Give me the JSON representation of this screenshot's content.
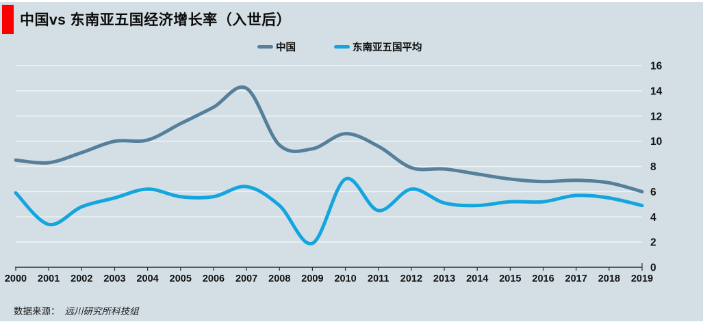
{
  "header": {
    "title": "中国vs 东南亚五国经济增长率（入世后）",
    "accent_color": "#fb0000"
  },
  "legend": {
    "items": [
      {
        "label": "中国",
        "color": "#557f9a"
      },
      {
        "label": "东南亚五国平均",
        "color": "#14a5de"
      }
    ]
  },
  "chart_data": {
    "type": "line",
    "title": "中国vs 东南亚五国经济增长率（入世后）",
    "x": [
      "2000",
      "2001",
      "2002",
      "2003",
      "2004",
      "2005",
      "2006",
      "2007",
      "2008",
      "2009",
      "2010",
      "2011",
      "2012",
      "2013",
      "2014",
      "2015",
      "2016",
      "2017",
      "2018",
      "2019"
    ],
    "series": [
      {
        "name": "中国",
        "color": "#557f9a",
        "values": [
          8.5,
          8.3,
          9.1,
          10.0,
          10.1,
          11.4,
          12.7,
          14.2,
          9.7,
          9.4,
          10.6,
          9.6,
          7.9,
          7.8,
          7.4,
          7.0,
          6.8,
          6.9,
          6.7,
          6.0
        ]
      },
      {
        "name": "东南亚五国平均",
        "color": "#14a5de",
        "values": [
          5.9,
          3.4,
          4.8,
          5.5,
          6.2,
          5.6,
          5.6,
          6.4,
          4.9,
          1.9,
          7.0,
          4.5,
          6.2,
          5.1,
          4.9,
          5.2,
          5.2,
          5.7,
          5.5,
          4.9
        ]
      }
    ],
    "ylim": [
      0,
      16
    ],
    "yticks": [
      0,
      2,
      4,
      6,
      8,
      10,
      12,
      14,
      16
    ],
    "grid": true,
    "smooth": true,
    "legend_position": "top-center",
    "y_axis_side": "right"
  },
  "footer": {
    "source_prefix": "数据来源：",
    "source_name": "远川研究所科技组"
  },
  "colors": {
    "background": "#d3dfe5",
    "gridline": "#f4f8f9",
    "axis": "#2b2b2b",
    "tick_text": "#111111"
  }
}
